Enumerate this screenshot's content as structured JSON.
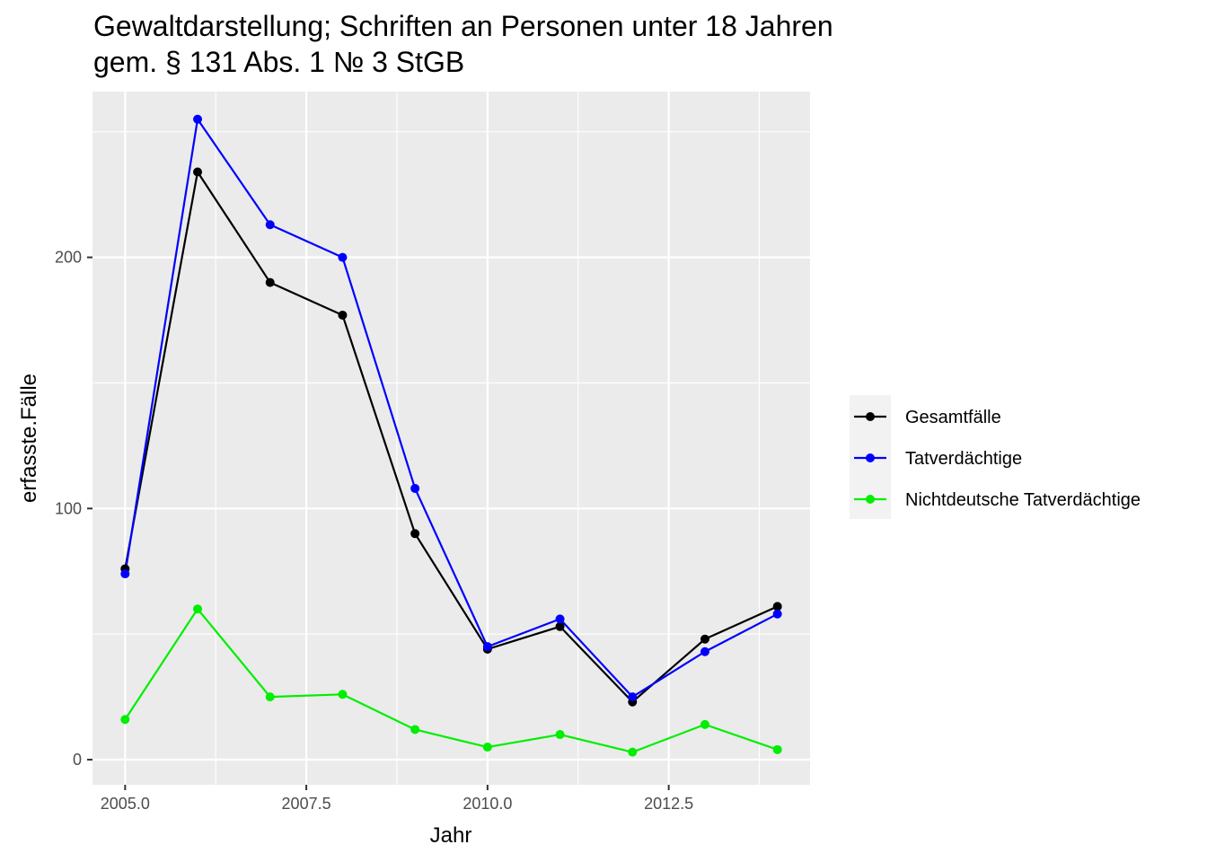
{
  "chart_data": {
    "type": "line",
    "title_line1": "Gewaltdarstellung; Schriften an Personen unter 18 Jahren",
    "title_line2": "gem. § 131 Abs. 1 № 3 StGB",
    "xlabel": "Jahr",
    "ylabel": "erfasste.Fälle",
    "x": [
      2005,
      2006,
      2007,
      2008,
      2009,
      2010,
      2011,
      2012,
      2013,
      2014
    ],
    "xlim": [
      2004.55,
      2014.45
    ],
    "ylim": [
      -10,
      266
    ],
    "x_ticks": [
      2005.0,
      2007.5,
      2010.0,
      2012.5
    ],
    "x_tick_labels": [
      "2005.0",
      "2007.5",
      "2010.0",
      "2012.5"
    ],
    "y_ticks": [
      0,
      100,
      200
    ],
    "y_tick_labels": [
      "0",
      "100",
      "200"
    ],
    "x_minor_ticks": [
      2006.25,
      2008.75,
      2011.25,
      2013.75
    ],
    "y_minor_ticks": [
      50,
      150,
      250
    ],
    "grid": true,
    "legend_position": "right",
    "series": [
      {
        "name": "Gesamtfälle",
        "color": "#000000",
        "values": [
          76,
          234,
          190,
          177,
          90,
          44,
          53,
          23,
          48,
          61
        ]
      },
      {
        "name": "Tatverdächtige",
        "color": "#0000ff",
        "values": [
          74,
          255,
          213,
          200,
          108,
          45,
          56,
          25,
          43,
          58
        ]
      },
      {
        "name": "Nichtdeutsche Tatverdächtige",
        "color": "#00ee00",
        "values": [
          16,
          60,
          25,
          26,
          12,
          5,
          10,
          3,
          14,
          4
        ]
      }
    ]
  }
}
